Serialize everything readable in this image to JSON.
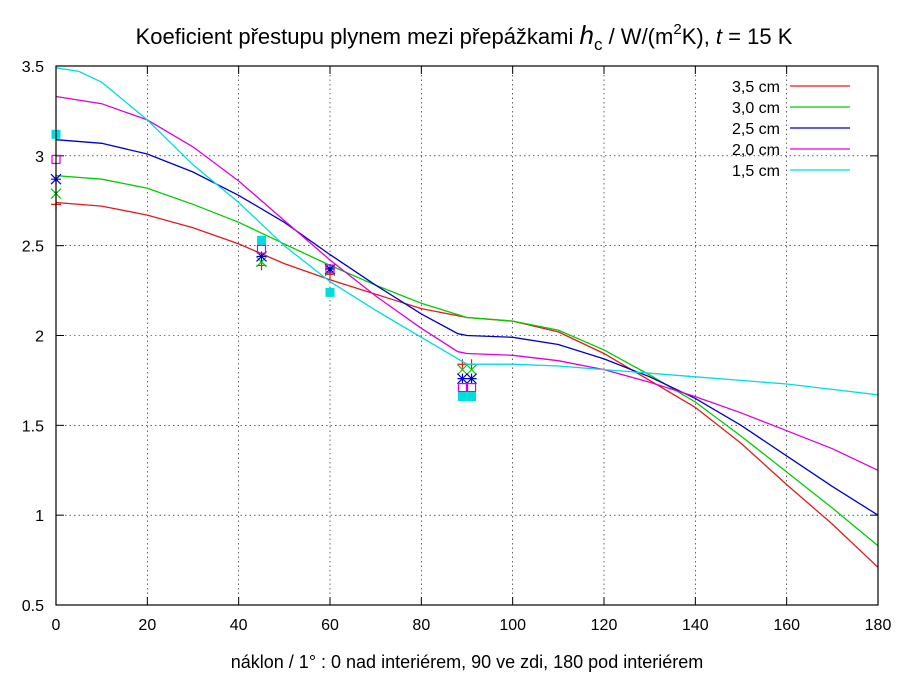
{
  "chart_data": {
    "type": "line",
    "title_parts": {
      "prefix": "Koeficient přestupu plynem mezi přepážkami ",
      "h": "h",
      "c": "c",
      "mid1": " / W/(m",
      "sup": "2",
      "mid2": "K), ",
      "t": "t",
      "suffix": " = 15 K"
    },
    "xlabel": "náklon / 1° : 0 nad interiérem, 90 ve zdi, 180 pod interiérem",
    "ylabel": "",
    "xlim": [
      0,
      180
    ],
    "ylim": [
      0.5,
      3.5
    ],
    "xticks": [
      0,
      20,
      40,
      60,
      80,
      100,
      120,
      140,
      160,
      180
    ],
    "yticks": [
      0.5,
      1,
      1.5,
      2,
      2.5,
      3,
      3.5
    ],
    "ytick_labels": [
      "0.5",
      "1",
      "1.5",
      "2",
      "2.5",
      "3",
      "3.5"
    ],
    "grid": true,
    "legend_position": "top-right",
    "series": [
      {
        "name": "3,5 cm",
        "color": "#e31a1c",
        "marker": "plus",
        "curve": [
          [
            0,
            2.74
          ],
          [
            10,
            2.72
          ],
          [
            20,
            2.67
          ],
          [
            30,
            2.6
          ],
          [
            40,
            2.51
          ],
          [
            50,
            2.4
          ],
          [
            60,
            2.31
          ],
          [
            70,
            2.23
          ],
          [
            80,
            2.15
          ],
          [
            90,
            2.1
          ],
          [
            100,
            2.08
          ],
          [
            110,
            2.02
          ],
          [
            120,
            1.9
          ],
          [
            130,
            1.75
          ],
          [
            140,
            1.6
          ],
          [
            150,
            1.4
          ],
          [
            160,
            1.17
          ],
          [
            170,
            0.95
          ],
          [
            180,
            0.71
          ]
        ],
        "points": [
          [
            0,
            2.73
          ],
          [
            45,
            2.39
          ],
          [
            60,
            2.34
          ],
          [
            89,
            1.84
          ],
          [
            91,
            1.84
          ]
        ]
      },
      {
        "name": "3,0 cm",
        "color": "#00cc00",
        "marker": "x",
        "curve": [
          [
            0,
            2.89
          ],
          [
            10,
            2.87
          ],
          [
            20,
            2.82
          ],
          [
            30,
            2.73
          ],
          [
            40,
            2.63
          ],
          [
            50,
            2.51
          ],
          [
            60,
            2.39
          ],
          [
            70,
            2.28
          ],
          [
            80,
            2.18
          ],
          [
            90,
            2.1
          ],
          [
            100,
            2.08
          ],
          [
            110,
            2.03
          ],
          [
            120,
            1.92
          ],
          [
            130,
            1.78
          ],
          [
            140,
            1.63
          ],
          [
            150,
            1.44
          ],
          [
            160,
            1.24
          ],
          [
            170,
            1.04
          ],
          [
            180,
            0.83
          ]
        ],
        "points": [
          [
            0,
            2.79
          ],
          [
            45,
            2.41
          ],
          [
            60,
            2.36
          ],
          [
            89,
            1.81
          ],
          [
            91,
            1.81
          ]
        ]
      },
      {
        "name": "2,5 cm",
        "color": "#0000cc",
        "marker": "star",
        "curve": [
          [
            0,
            3.09
          ],
          [
            10,
            3.07
          ],
          [
            20,
            3.01
          ],
          [
            30,
            2.91
          ],
          [
            40,
            2.78
          ],
          [
            50,
            2.63
          ],
          [
            60,
            2.45
          ],
          [
            70,
            2.28
          ],
          [
            80,
            2.12
          ],
          [
            88,
            2.01
          ],
          [
            90,
            2.0
          ],
          [
            100,
            1.99
          ],
          [
            110,
            1.95
          ],
          [
            120,
            1.87
          ],
          [
            130,
            1.77
          ],
          [
            140,
            1.65
          ],
          [
            150,
            1.5
          ],
          [
            160,
            1.33
          ],
          [
            170,
            1.16
          ],
          [
            180,
            1.0
          ]
        ],
        "points": [
          [
            0,
            2.87
          ],
          [
            45,
            2.44
          ],
          [
            60,
            2.37
          ],
          [
            89,
            1.76
          ],
          [
            91,
            1.76
          ]
        ]
      },
      {
        "name": "2,0 cm",
        "color": "#dd00dd",
        "marker": "square-open",
        "curve": [
          [
            0,
            3.33
          ],
          [
            10,
            3.29
          ],
          [
            20,
            3.2
          ],
          [
            30,
            3.05
          ],
          [
            40,
            2.86
          ],
          [
            50,
            2.64
          ],
          [
            60,
            2.42
          ],
          [
            70,
            2.22
          ],
          [
            80,
            2.04
          ],
          [
            88,
            1.91
          ],
          [
            90,
            1.9
          ],
          [
            100,
            1.89
          ],
          [
            110,
            1.86
          ],
          [
            120,
            1.81
          ],
          [
            130,
            1.74
          ],
          [
            140,
            1.66
          ],
          [
            150,
            1.57
          ],
          [
            160,
            1.47
          ],
          [
            170,
            1.37
          ],
          [
            180,
            1.25
          ]
        ],
        "points": [
          [
            0,
            2.98
          ],
          [
            45,
            2.48
          ],
          [
            60,
            2.37
          ],
          [
            89,
            1.71
          ],
          [
            91,
            1.71
          ]
        ]
      },
      {
        "name": "1,5 cm",
        "color": "#00dddd",
        "marker": "square-filled",
        "curve": [
          [
            0,
            3.49
          ],
          [
            5,
            3.47
          ],
          [
            10,
            3.41
          ],
          [
            20,
            3.2
          ],
          [
            30,
            2.95
          ],
          [
            40,
            2.74
          ],
          [
            50,
            2.5
          ],
          [
            60,
            2.3
          ],
          [
            70,
            2.14
          ],
          [
            80,
            1.99
          ],
          [
            90,
            1.84
          ],
          [
            100,
            1.84
          ],
          [
            110,
            1.83
          ],
          [
            120,
            1.81
          ],
          [
            130,
            1.79
          ],
          [
            140,
            1.77
          ],
          [
            150,
            1.75
          ],
          [
            160,
            1.73
          ],
          [
            170,
            1.7
          ],
          [
            180,
            1.67
          ]
        ],
        "points": [
          [
            0,
            3.12
          ],
          [
            45,
            2.53
          ],
          [
            60,
            2.24
          ],
          [
            89,
            1.66
          ],
          [
            91,
            1.66
          ]
        ]
      }
    ]
  }
}
